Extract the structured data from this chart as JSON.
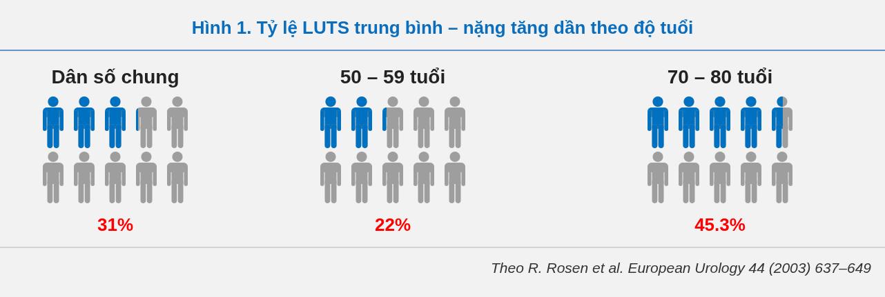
{
  "chart_data": {
    "type": "other",
    "title": "Hình 1. Tỷ lệ LUTS trung bình – nặng tăng dần theo độ tuổi",
    "categories": [
      "Dân số chung",
      "50 – 59 tuổi",
      "70 – 80 tuổi"
    ],
    "values": [
      31,
      22,
      45.3
    ],
    "value_labels": [
      "31%",
      "22%",
      "45.3%"
    ],
    "color": "#0070c0",
    "annotations": [
      "Theo R. Rosen et al. European Urology 44 (2003) 637–649"
    ]
  }
}
